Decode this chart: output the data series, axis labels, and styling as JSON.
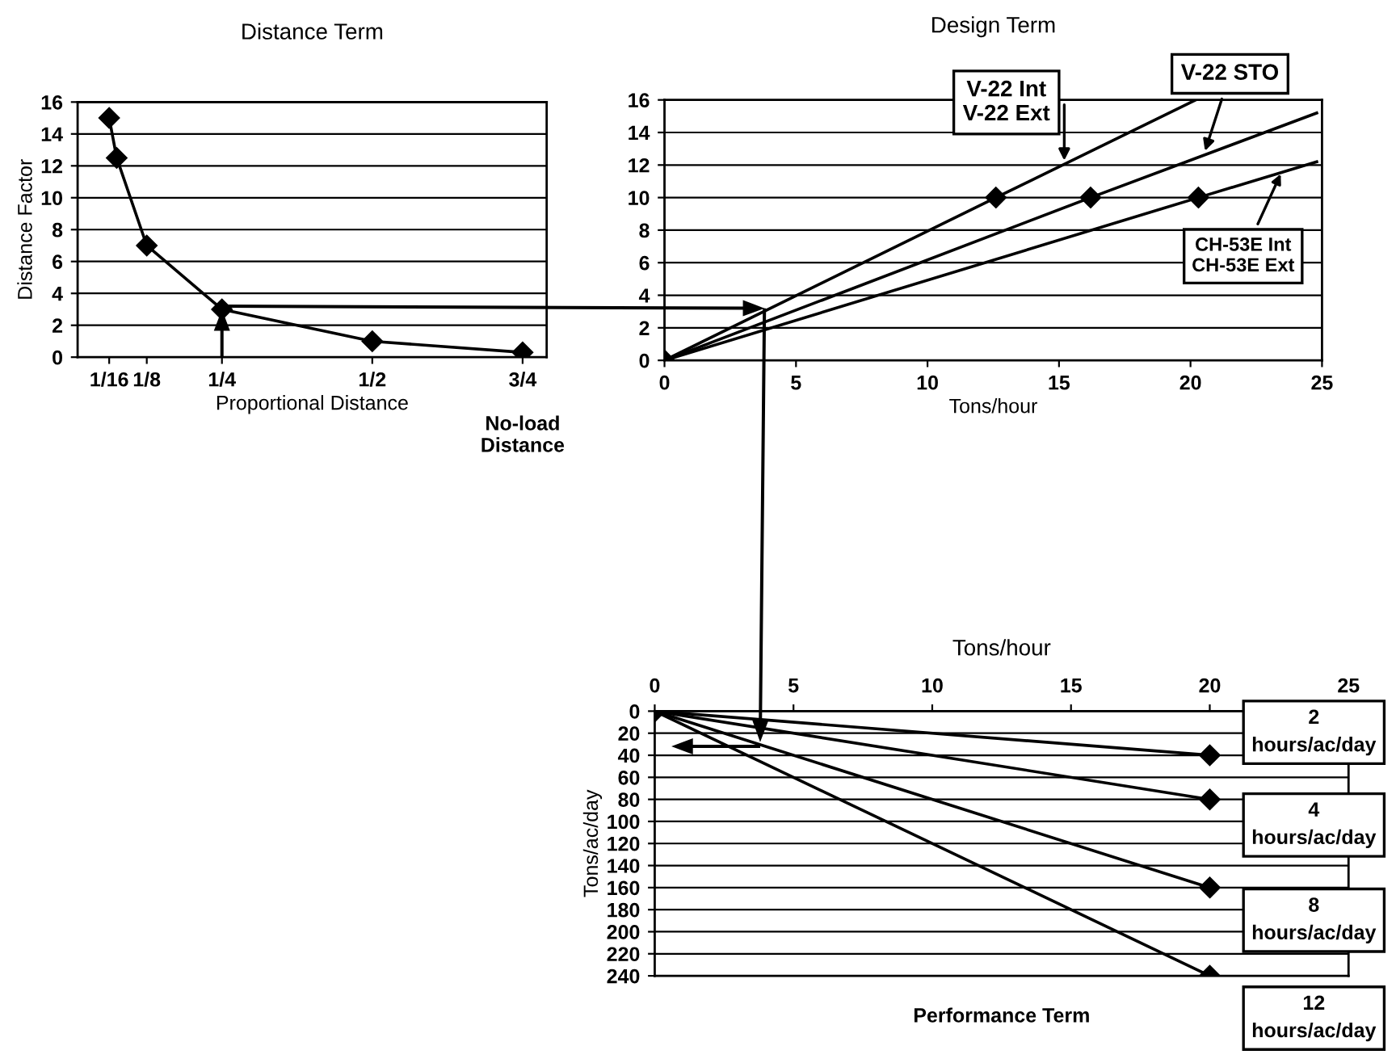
{
  "chart_data": [
    {
      "type": "line",
      "title": "Distance Term",
      "xlabel": "Proportional Distance",
      "ylabel": "Distance Factor",
      "annotations": [
        "No-load\nDistance"
      ],
      "xlim": [
        0.01,
        0.79
      ],
      "ylim": [
        0,
        16
      ],
      "xticks": [
        {
          "value": 0.0625,
          "label": "1/16"
        },
        {
          "value": 0.125,
          "label": "1/8"
        },
        {
          "value": 0.25,
          "label": "1/4"
        },
        {
          "value": 0.5,
          "label": "1/2"
        },
        {
          "value": 0.75,
          "label": "3/4"
        }
      ],
      "yticks": [
        0,
        2,
        4,
        6,
        8,
        10,
        12,
        14,
        16
      ],
      "grid": "y",
      "legend": false,
      "series": [
        {
          "color": "#000000",
          "marker": "diamond",
          "x": [
            0.0625,
            0.075,
            0.125,
            0.25,
            0.5,
            0.75
          ],
          "values": [
            15,
            12.5,
            7,
            3,
            1,
            0.3
          ]
        }
      ]
    },
    {
      "type": "line",
      "title": "Design Term",
      "xlabel": "Tons/hour",
      "xlim": [
        0,
        25
      ],
      "ylim": [
        0,
        16
      ],
      "xticks": [
        0,
        5,
        10,
        15,
        20,
        25
      ],
      "yticks": [
        0,
        2,
        4,
        6,
        8,
        10,
        12,
        14,
        16
      ],
      "grid": "y",
      "legend": false,
      "annotations": [
        {
          "text": "V-22 Int\nV-22 Ext",
          "x": 15.2,
          "y": 12
        },
        {
          "text": "V-22 STO",
          "x": 20.5,
          "y": 12.6
        },
        {
          "text": "CH-53E Int\nCH-53E Ext",
          "x": 23.5,
          "y": 11.7
        }
      ],
      "series": [
        {
          "color": "#000000",
          "marker": "none",
          "x": [
            0,
            12.6,
            20.2
          ],
          "values": [
            0,
            10,
            16
          ]
        },
        {
          "color": "#000000",
          "marker": "none",
          "x": [
            0,
            16.2,
            24.8
          ],
          "values": [
            0,
            10,
            15.2
          ]
        },
        {
          "color": "#000000",
          "marker": "none",
          "x": [
            0,
            20.3,
            24.8
          ],
          "values": [
            0,
            10,
            12.2
          ]
        },
        {
          "type": "scatter",
          "color": "#000000",
          "marker": "diamond",
          "x": [
            0,
            12.6,
            16.2,
            20.3
          ],
          "values": [
            0,
            10,
            10,
            10
          ]
        }
      ]
    },
    {
      "type": "line",
      "title": "Performance Term",
      "xlabel": "Tons/hour",
      "ylabel": "Tons/ac/day",
      "xlim": [
        0,
        25
      ],
      "ylim": [
        240,
        0
      ],
      "xticks": [
        0,
        5,
        10,
        15,
        20,
        25
      ],
      "yticks": [
        0,
        20,
        40,
        60,
        80,
        100,
        120,
        140,
        160,
        180,
        200,
        220,
        240
      ],
      "grid": "y",
      "legend": false,
      "series": [
        {
          "name": "2\nhours/ac/day",
          "color": "#000000",
          "marker": "diamond",
          "x": [
            0,
            20
          ],
          "values": [
            0,
            40
          ]
        },
        {
          "name": "4\nhours/ac/day",
          "color": "#000000",
          "marker": "diamond",
          "x": [
            0,
            20
          ],
          "values": [
            0,
            80
          ]
        },
        {
          "name": "8\nhours/ac/day",
          "color": "#000000",
          "marker": "diamond",
          "x": [
            0,
            20
          ],
          "values": [
            0,
            160
          ]
        },
        {
          "name": "12\nhours/ac/day",
          "color": "#000000",
          "marker": "diamond",
          "x": [
            0,
            20
          ],
          "values": [
            0,
            240
          ]
        }
      ]
    }
  ]
}
